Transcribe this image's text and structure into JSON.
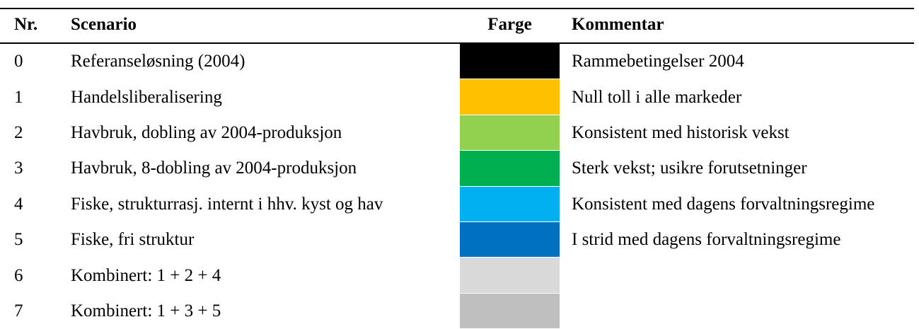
{
  "table": {
    "header": [
      "Nr.",
      "Scenario",
      "Farge",
      "Kommentar"
    ],
    "rows": [
      {
        "nr": 0,
        "scenario": "Referanseløsning (2004)",
        "color": "#000000",
        "comment": "Rammebetingelser 2004"
      },
      {
        "nr": 1,
        "scenario": "Handelsliberalisering",
        "color": "#FFC000",
        "comment": "Null toll i alle markeder"
      },
      {
        "nr": 2,
        "scenario": "Havbruk, dobling av 2004-produksjon",
        "color": "#92D050",
        "comment": "Konsistent med historisk vekst"
      },
      {
        "nr": 3,
        "scenario": "Havbruk, 8-dobling av 2004-produksjon",
        "color": "#00B050",
        "comment": "Sterk vekst; usikre forutsetninger"
      },
      {
        "nr": 4,
        "scenario": "Fiske, strukturrasj. internt i hhv. kyst og hav",
        "color": "#00B0F0",
        "comment": "Konsistent med dagens forvaltningsregime"
      },
      {
        "nr": 5,
        "scenario": "Fiske, fri struktur",
        "color": "#0070C0",
        "comment": "I strid med dagens forvaltningsregime"
      },
      {
        "nr": 6,
        "scenario": "Kombinert: 1 + 2 + 4",
        "color": "#D9D9D9"
      },
      {
        "nr": 7,
        "scenario": "Kombinert: 1 + 3 + 5",
        "color": "#BFBFBF"
      }
    ]
  }
}
